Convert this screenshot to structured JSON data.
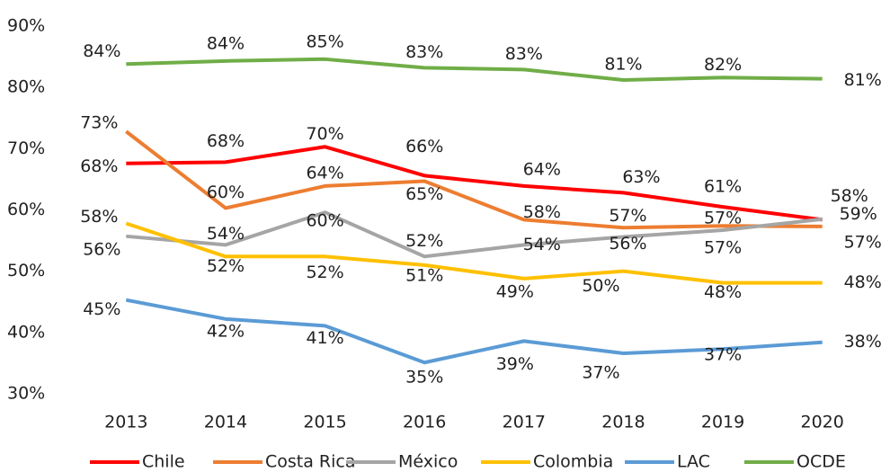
{
  "chart_data": {
    "type": "line",
    "categories": [
      "2013",
      "2014",
      "2015",
      "2016",
      "2017",
      "2018",
      "2019",
      "2020"
    ],
    "ylim": [
      30,
      90
    ],
    "yticks": [
      {
        "value": 30,
        "label": "30%"
      },
      {
        "value": 40,
        "label": "40%"
      },
      {
        "value": 50,
        "label": "50%"
      },
      {
        "value": 60,
        "label": "60%"
      },
      {
        "value": 70,
        "label": "70%"
      },
      {
        "value": 80,
        "label": "80%"
      },
      {
        "value": 90,
        "label": "90%"
      }
    ],
    "grid": true,
    "legend": "bottom",
    "series": [
      {
        "name": "Chile",
        "color": "#ff0000",
        "values": [
          67.6,
          67.8,
          70.3,
          65.6,
          63.9,
          62.8,
          60.5,
          58.4
        ],
        "value_labels": [
          "68%",
          "68%",
          "70%",
          "66%",
          "64%",
          "63%",
          "61%",
          "58%"
        ]
      },
      {
        "name": "Costa Rica",
        "color": "#ed7d31",
        "values": [
          72.8,
          60.3,
          63.9,
          64.7,
          58.4,
          57.1,
          57.4,
          57.3
        ],
        "value_labels": [
          "73%",
          "60%",
          "64%",
          "65%",
          "58%",
          "57%",
          "57%",
          "57%"
        ]
      },
      {
        "name": "México",
        "color": "#a5a5a5",
        "values": [
          55.7,
          54.3,
          59.6,
          52.4,
          54.3,
          55.6,
          56.7,
          58.5
        ],
        "value_labels": [
          "56%",
          "54%",
          "60%",
          "52%",
          "54%",
          "56%",
          "57%",
          "59%"
        ]
      },
      {
        "name": "Colombia",
        "color": "#ffc000",
        "values": [
          57.8,
          52.4,
          52.4,
          51.0,
          48.8,
          50.0,
          48.1,
          48.1
        ],
        "value_labels": [
          "58%",
          "52%",
          "52%",
          "51%",
          "49%",
          "50%",
          "48%",
          "48%"
        ]
      },
      {
        "name": "LAC",
        "color": "#5b9bd5",
        "values": [
          45.3,
          42.2,
          41.1,
          35.1,
          38.6,
          36.6,
          37.3,
          38.4
        ],
        "value_labels": [
          "45%",
          "42%",
          "41%",
          "35%",
          "39%",
          "37%",
          "37%",
          "38%"
        ]
      },
      {
        "name": "OCDE",
        "color": "#70ad47",
        "values": [
          83.8,
          84.3,
          84.6,
          83.2,
          82.9,
          81.2,
          81.6,
          81.4
        ],
        "value_labels": [
          "84%",
          "84%",
          "85%",
          "83%",
          "83%",
          "81%",
          "82%",
          "81%"
        ]
      }
    ]
  }
}
